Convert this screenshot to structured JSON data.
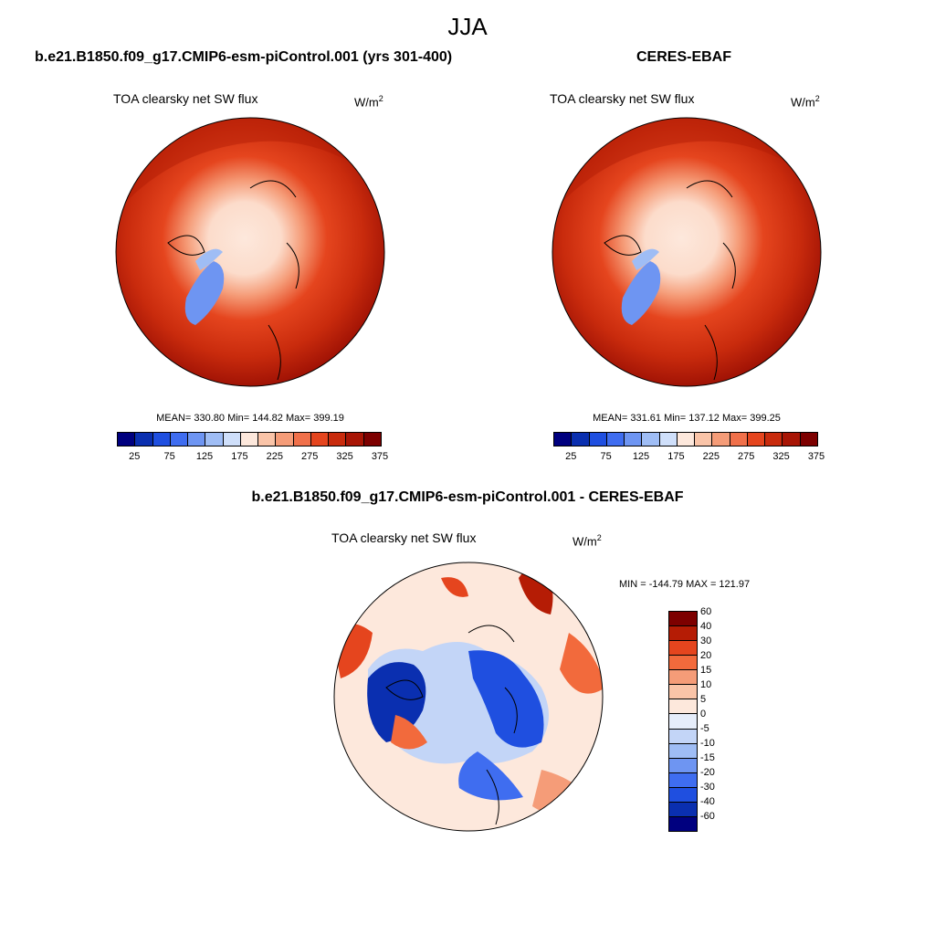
{
  "figure": {
    "title": "JJA",
    "panel_left": {
      "header": "b.e21.B1850.f09_g17.CMIP6-esm-piControl.001 (yrs 301-400)",
      "label": "TOA clearsky net SW flux",
      "units": "W/m",
      "units_exp": "2",
      "stats": "MEAN= 330.80  Min= 144.82  Max= 399.19",
      "mean": 330.8,
      "min": 144.82,
      "max": 399.19
    },
    "panel_right": {
      "header": "CERES-EBAF",
      "label": "TOA clearsky net SW flux",
      "units": "W/m",
      "units_exp": "2",
      "stats": "MEAN= 331.61  Min= 137.12  Max= 399.25",
      "mean": 331.61,
      "min": 137.12,
      "max": 399.25
    },
    "panel_diff": {
      "header": "b.e21.B1850.f09_g17.CMIP6-esm-piControl.001 - CERES-EBAF",
      "label": "TOA clearsky net SW flux",
      "units": "W/m",
      "units_exp": "2",
      "stats": "MIN = -144.79 MAX = 121.97",
      "min": -144.79,
      "max": 121.97
    }
  },
  "colorbar_abs": {
    "colors": [
      "#00007f",
      "#0a2fb0",
      "#1f4fe0",
      "#3f6df0",
      "#6e95f2",
      "#9fbdf5",
      "#cfdffa",
      "#fde8dc",
      "#fac4a8",
      "#f59c78",
      "#f0704a",
      "#e5451e",
      "#c92b0d",
      "#a81505",
      "#7d0000"
    ],
    "tick_labels": [
      "25",
      "75",
      "125",
      "175",
      "225",
      "275",
      "325",
      "375"
    ]
  },
  "colorbar_diff": {
    "colors": [
      "#7d0000",
      "#b51c05",
      "#e5451e",
      "#f26a3c",
      "#f59c78",
      "#fac4a8",
      "#fde8dc",
      "#e6edfa",
      "#c3d5f7",
      "#9fbdf5",
      "#6e95f2",
      "#3f6df0",
      "#1f4fe0",
      "#0a2fb0",
      "#00007f"
    ],
    "tick_labels": [
      "60",
      "40",
      "30",
      "20",
      "15",
      "10",
      "5",
      "0",
      "-5",
      "-10",
      "-15",
      "-20",
      "-30",
      "-40",
      "-60"
    ]
  }
}
